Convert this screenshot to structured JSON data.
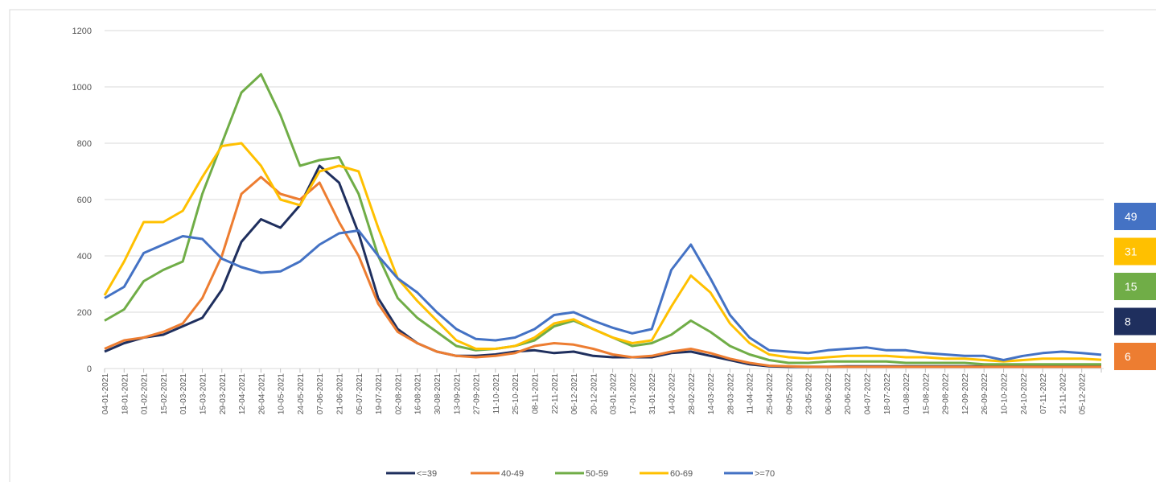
{
  "chart_data": {
    "type": "line",
    "categories": [
      "04-01-2021",
      "18-01-2021",
      "01-02-2021",
      "15-02-2021",
      "01-03-2021",
      "15-03-2021",
      "29-03-2021",
      "12-04-2021",
      "26-04-2021",
      "10-05-2021",
      "24-05-2021",
      "07-06-2021",
      "21-06-2021",
      "05-07-2021",
      "19-07-2021",
      "02-08-2021",
      "16-08-2021",
      "30-08-2021",
      "13-09-2021",
      "27-09-2021",
      "11-10-2021",
      "25-10-2021",
      "08-11-2021",
      "22-11-2021",
      "06-12-2021",
      "20-12-2021",
      "03-01-2022",
      "17-01-2022",
      "31-01-2022",
      "14-02-2022",
      "28-02-2022",
      "14-03-2022",
      "28-03-2022",
      "11-04-2022",
      "25-04-2022",
      "09-05-2022",
      "23-05-2022",
      "06-06-2022",
      "20-06-2022",
      "04-07-2022",
      "18-07-2022",
      "01-08-2022",
      "15-08-2022",
      "29-08-2022",
      "12-09-2022",
      "26-09-2022",
      "10-10-2022",
      "24-10-2022",
      "07-11-2022",
      "21-11-2022",
      "05-12-2022",
      null
    ],
    "series": [
      {
        "name": "<=39",
        "color": "#1f2f5e",
        "values": [
          60,
          90,
          110,
          120,
          150,
          180,
          280,
          450,
          530,
          500,
          580,
          720,
          660,
          480,
          250,
          140,
          90,
          60,
          45,
          45,
          50,
          60,
          65,
          55,
          60,
          45,
          40,
          40,
          40,
          55,
          60,
          45,
          30,
          15,
          8,
          6,
          6,
          6,
          8,
          8,
          8,
          8,
          8,
          8,
          8,
          8,
          8,
          8,
          8,
          8,
          8,
          8
        ]
      },
      {
        "name": "40-49",
        "color": "#ed7d31",
        "values": [
          70,
          100,
          110,
          130,
          160,
          250,
          400,
          620,
          680,
          620,
          600,
          660,
          520,
          400,
          230,
          130,
          90,
          60,
          45,
          40,
          45,
          55,
          80,
          90,
          85,
          70,
          50,
          40,
          45,
          60,
          70,
          55,
          35,
          20,
          10,
          8,
          6,
          6,
          6,
          6,
          6,
          6,
          6,
          6,
          6,
          6,
          6,
          6,
          6,
          6,
          6,
          6
        ]
      },
      {
        "name": "50-59",
        "color": "#70ad47",
        "values": [
          170,
          210,
          310,
          350,
          380,
          620,
          800,
          980,
          1045,
          900,
          720,
          740,
          750,
          620,
          400,
          250,
          180,
          130,
          80,
          65,
          70,
          80,
          100,
          150,
          170,
          140,
          110,
          80,
          90,
          120,
          170,
          130,
          80,
          50,
          30,
          20,
          20,
          25,
          25,
          25,
          25,
          20,
          20,
          20,
          20,
          15,
          15,
          15,
          15,
          15,
          15,
          15
        ]
      },
      {
        "name": "60-69",
        "color": "#ffc000",
        "values": [
          260,
          380,
          520,
          520,
          560,
          680,
          790,
          800,
          720,
          600,
          580,
          700,
          720,
          700,
          500,
          320,
          240,
          170,
          100,
          70,
          70,
          80,
          110,
          160,
          175,
          140,
          110,
          90,
          100,
          220,
          330,
          270,
          160,
          90,
          50,
          40,
          35,
          40,
          45,
          45,
          45,
          40,
          40,
          35,
          35,
          30,
          25,
          30,
          35,
          35,
          35,
          31
        ]
      },
      {
        "name": ">=70",
        "color": "#4472c4",
        "values": [
          250,
          290,
          410,
          440,
          470,
          460,
          390,
          360,
          340,
          345,
          380,
          440,
          480,
          490,
          400,
          320,
          270,
          200,
          140,
          105,
          100,
          110,
          140,
          190,
          200,
          170,
          145,
          125,
          140,
          350,
          440,
          320,
          190,
          110,
          65,
          60,
          55,
          65,
          70,
          75,
          65,
          65,
          55,
          50,
          45,
          45,
          30,
          45,
          55,
          60,
          55,
          49
        ]
      }
    ],
    "ylim": [
      0,
      1200
    ],
    "yticks": [
      0,
      200,
      400,
      600,
      800,
      1000,
      1200
    ],
    "grid": true,
    "legend": "bottom"
  }
}
